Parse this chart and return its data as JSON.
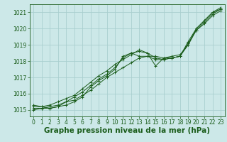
{
  "background_color": "#cce8e8",
  "grid_color": "#aacfcf",
  "line_color": "#1a5c1a",
  "marker_color": "#1a5c1a",
  "xlabel": "Graphe pression niveau de la mer (hPa)",
  "xlabel_fontsize": 7.5,
  "xlabel_color": "#1a5c1a",
  "yticks": [
    1015,
    1016,
    1017,
    1018,
    1019,
    1020,
    1021
  ],
  "xticks": [
    0,
    1,
    2,
    3,
    4,
    5,
    6,
    7,
    8,
    9,
    10,
    11,
    12,
    13,
    14,
    15,
    16,
    17,
    18,
    19,
    20,
    21,
    22,
    23
  ],
  "ylim": [
    1014.6,
    1021.5
  ],
  "xlim": [
    -0.5,
    23.5
  ],
  "tick_color": "#1a5c1a",
  "tick_fontsize": 5.5,
  "series": [
    {
      "x": [
        0,
        1,
        2,
        3,
        4,
        5,
        6,
        7,
        8,
        9,
        10,
        11,
        12,
        13,
        14,
        15,
        16,
        17,
        18,
        19,
        20,
        21,
        22,
        23
      ],
      "y": [
        1015.1,
        1015.1,
        1015.1,
        1015.2,
        1015.3,
        1015.5,
        1015.8,
        1016.4,
        1016.8,
        1017.1,
        1017.5,
        1018.3,
        1018.5,
        1018.6,
        1018.5,
        1017.7,
        1018.2,
        1018.2,
        1018.3,
        1019.0,
        1020.0,
        1020.5,
        1021.0,
        1021.2
      ]
    },
    {
      "x": [
        0,
        1,
        2,
        3,
        4,
        5,
        6,
        7,
        8,
        9,
        10,
        11,
        12,
        13,
        14,
        15,
        16,
        17,
        18,
        19,
        20,
        21,
        22,
        23
      ],
      "y": [
        1015.0,
        1015.1,
        1015.2,
        1015.3,
        1015.5,
        1015.6,
        1015.9,
        1016.2,
        1016.6,
        1017.0,
        1017.3,
        1017.6,
        1017.9,
        1018.2,
        1018.3,
        1018.1,
        1018.1,
        1018.2,
        1018.3,
        1019.1,
        1019.9,
        1020.3,
        1020.8,
        1021.1
      ]
    },
    {
      "x": [
        0,
        1,
        2,
        3,
        4,
        5,
        6,
        7,
        8,
        9,
        10,
        11,
        12,
        13,
        14,
        15,
        16,
        17,
        18,
        19,
        20,
        21,
        22,
        23
      ],
      "y": [
        1015.2,
        1015.2,
        1015.3,
        1015.5,
        1015.7,
        1015.9,
        1016.3,
        1016.7,
        1017.1,
        1017.4,
        1017.8,
        1018.1,
        1018.4,
        1018.7,
        1018.5,
        1018.2,
        1018.1,
        1018.2,
        1018.3,
        1019.2,
        1020.0,
        1020.5,
        1021.0,
        1021.3
      ]
    },
    {
      "x": [
        0,
        1,
        2,
        3,
        4,
        5,
        6,
        7,
        8,
        9,
        10,
        11,
        12,
        13,
        14,
        15,
        16,
        17,
        18,
        19,
        20,
        21,
        22,
        23
      ],
      "y": [
        1015.3,
        1015.2,
        1015.1,
        1015.2,
        1015.5,
        1015.8,
        1016.1,
        1016.5,
        1016.9,
        1017.2,
        1017.6,
        1018.2,
        1018.5,
        1018.3,
        1018.3,
        1018.3,
        1018.2,
        1018.3,
        1018.4,
        1019.0,
        1019.9,
        1020.4,
        1020.9,
        1021.2
      ]
    }
  ]
}
